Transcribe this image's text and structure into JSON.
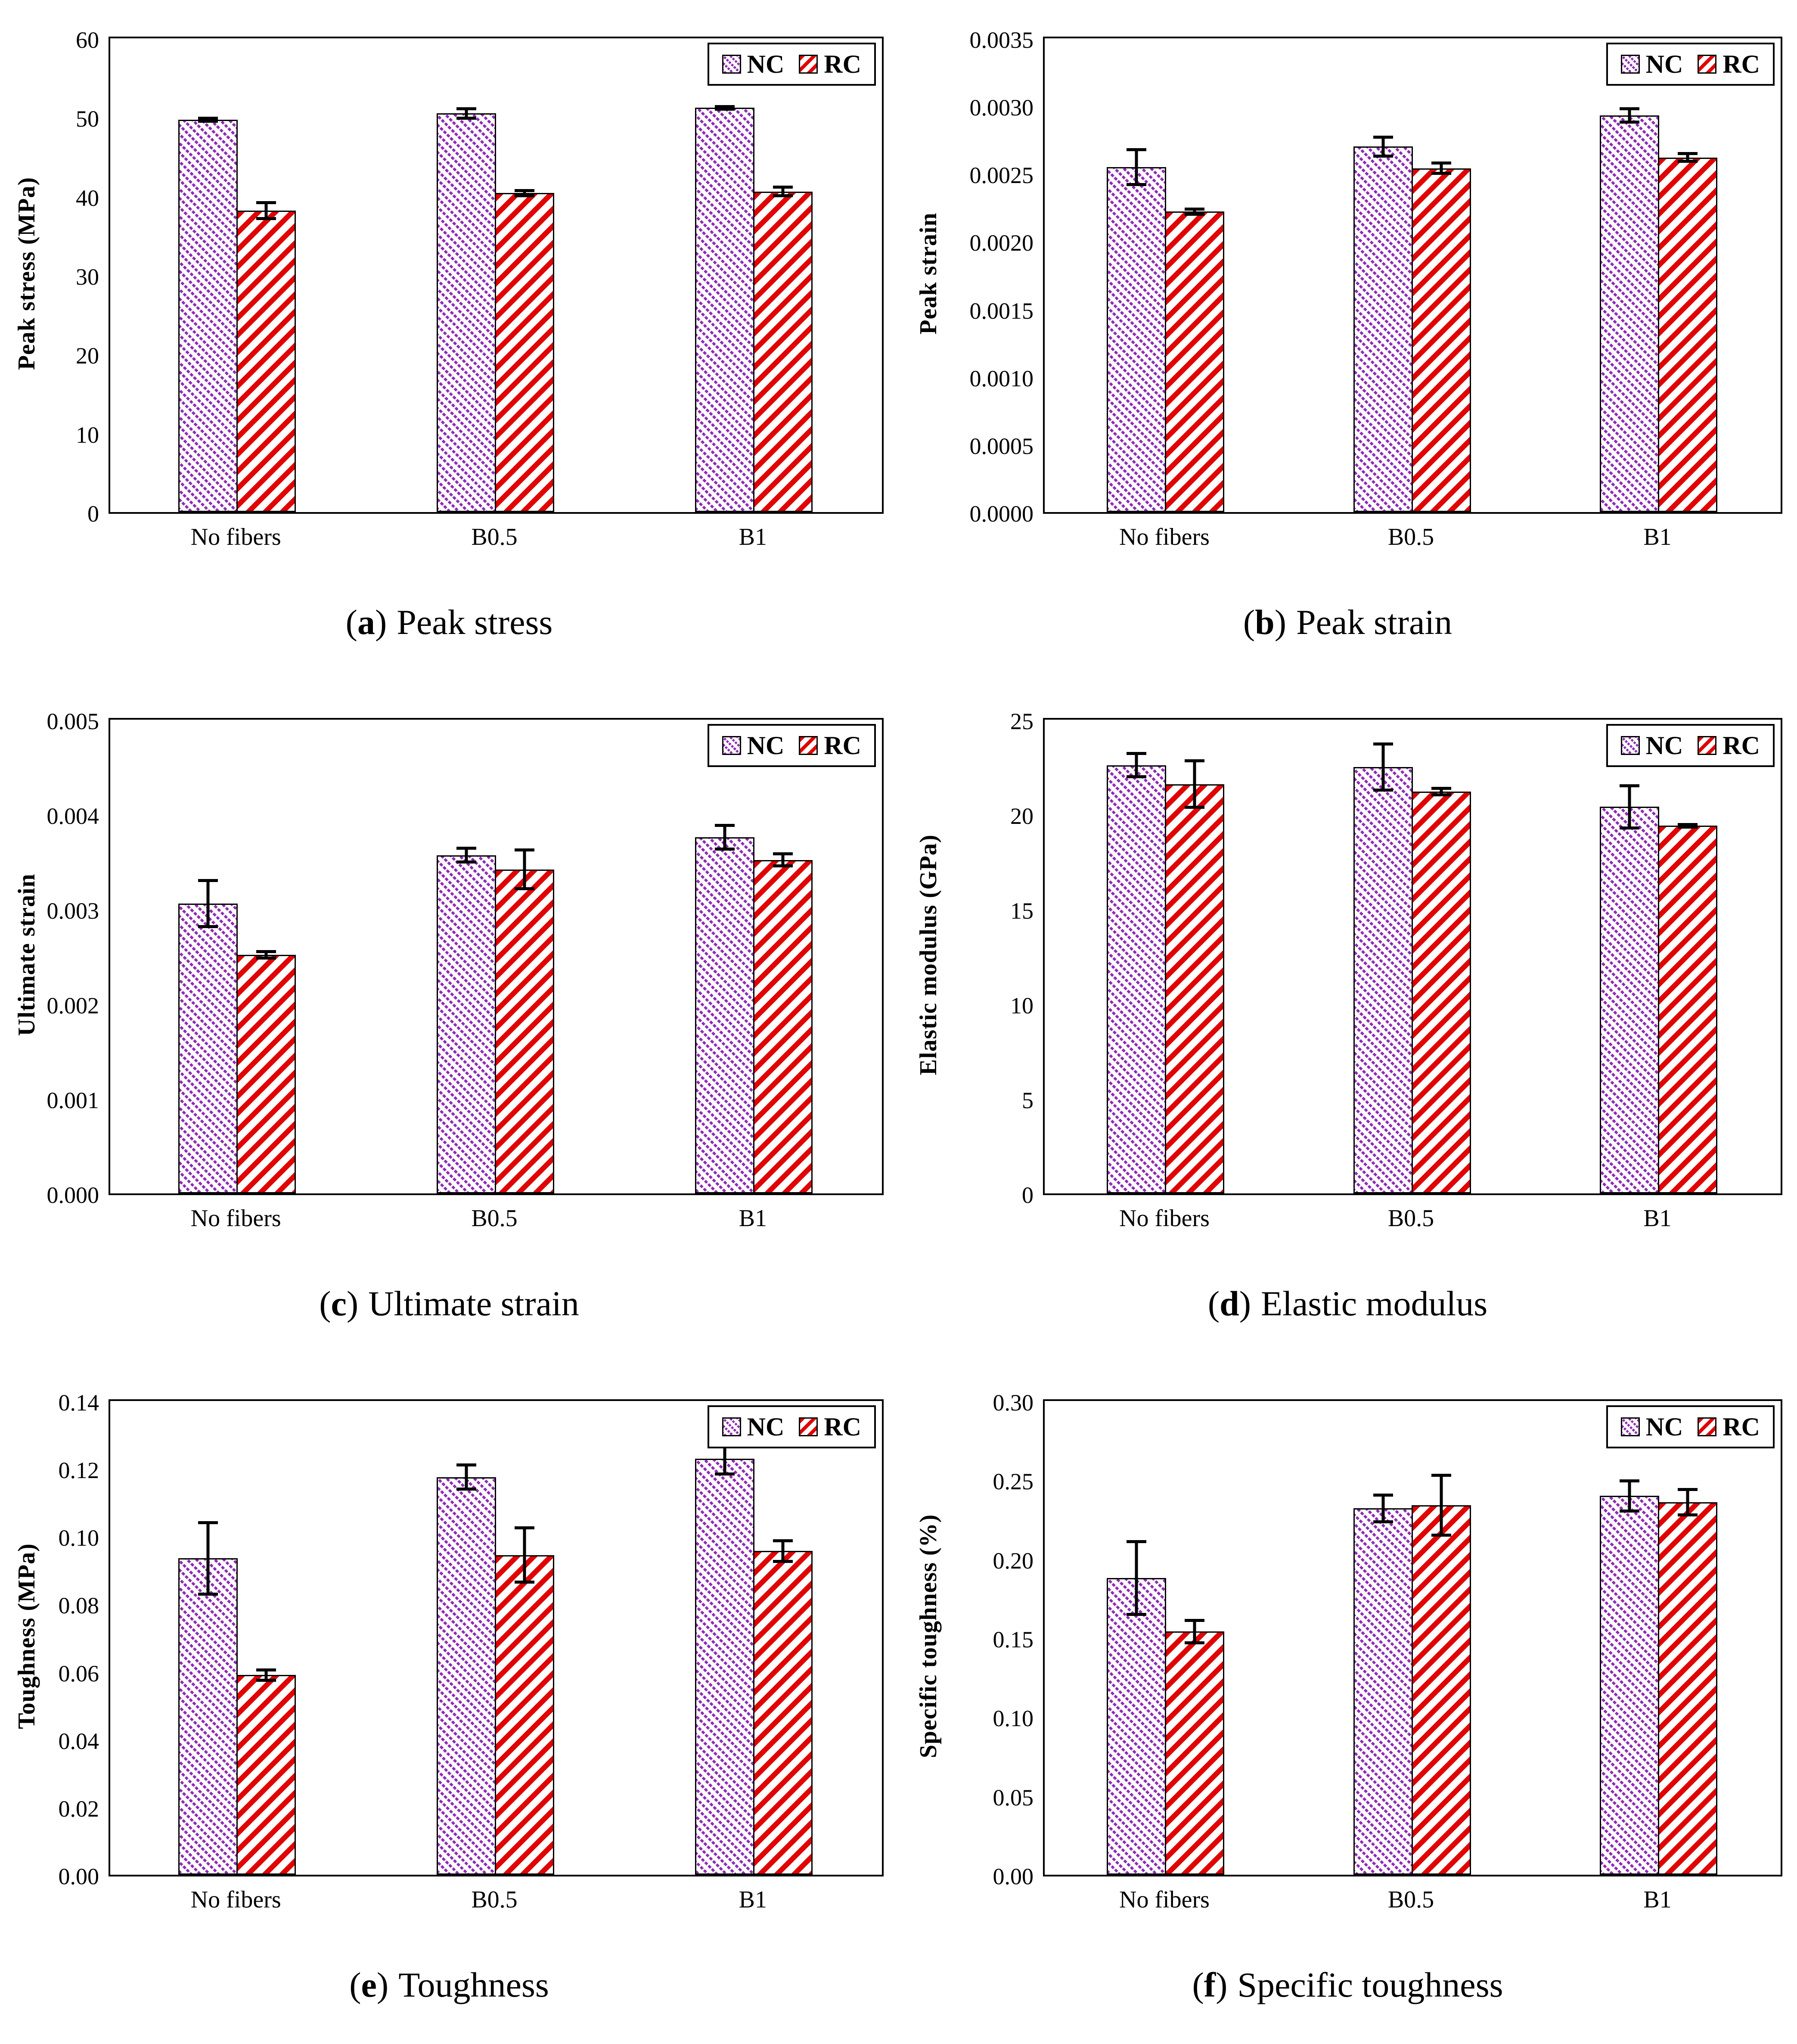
{
  "figure": {
    "legend": {
      "items": [
        {
          "label": "NC",
          "pattern": "purple-dotted-diagonal"
        },
        {
          "label": "RC",
          "pattern": "red-striped-diagonal"
        }
      ]
    },
    "colors": {
      "nc_purple": "#8E2BB3",
      "rc_red": "#E00404",
      "axis": "#000000",
      "background": "#FFFFFF"
    }
  },
  "chart_data": [
    {
      "type": "bar",
      "panel": "a",
      "caption": {
        "open": "(",
        "letter": "a",
        "close": ")",
        "title": "Peak stress"
      },
      "ylabel": "Peak stress (MPa)",
      "xlabel": "",
      "categories": [
        "No fibers",
        "B0.5",
        "B1"
      ],
      "ylim": [
        0,
        60
      ],
      "ytick_step": 10,
      "ytick_decimals": 0,
      "grid": false,
      "legend_position": "top-right",
      "series": [
        {
          "name": "NC",
          "values": [
            49.7,
            50.5,
            51.2
          ],
          "errors": [
            0.4,
            0.8,
            0.35
          ]
        },
        {
          "name": "RC",
          "values": [
            38.2,
            40.4,
            40.6
          ],
          "errors": [
            1.2,
            0.5,
            0.75
          ]
        }
      ]
    },
    {
      "type": "bar",
      "panel": "b",
      "caption": {
        "open": "(",
        "letter": "b",
        "close": ")",
        "title": "Peak strain"
      },
      "ylabel": "Peak strain",
      "xlabel": "",
      "categories": [
        "No fibers",
        "B0.5",
        "B1"
      ],
      "ylim": [
        0,
        0.0035
      ],
      "ytick_step": 0.0005,
      "ytick_decimals": 4,
      "grid": false,
      "legend_position": "top-right",
      "series": [
        {
          "name": "NC",
          "values": [
            0.00255,
            0.0027,
            0.00293
          ],
          "errors": [
            0.00014,
            8e-05,
            6e-05
          ]
        },
        {
          "name": "RC",
          "values": [
            0.00222,
            0.00254,
            0.00262
          ],
          "errors": [
            3e-05,
            5e-05,
            4e-05
          ]
        }
      ]
    },
    {
      "type": "bar",
      "panel": "c",
      "caption": {
        "open": "(",
        "letter": "c",
        "close": ")",
        "title": "Ultimate strain"
      },
      "ylabel": "Ultimate strain",
      "xlabel": "",
      "categories": [
        "No fibers",
        "B0.5",
        "B1"
      ],
      "ylim": [
        0,
        0.005
      ],
      "ytick_step": 0.001,
      "ytick_decimals": 3,
      "grid": false,
      "legend_position": "top-right",
      "series": [
        {
          "name": "NC",
          "values": [
            0.00306,
            0.00357,
            0.00376
          ],
          "errors": [
            0.00026,
            9e-05,
            0.00014
          ]
        },
        {
          "name": "RC",
          "values": [
            0.00252,
            0.00342,
            0.00352
          ],
          "errors": [
            5e-05,
            0.00022,
            8e-05
          ]
        }
      ]
    },
    {
      "type": "bar",
      "panel": "d",
      "caption": {
        "open": "(",
        "letter": "d",
        "close": ")",
        "title": "Elastic modulus"
      },
      "ylabel": "Elastic modulus (GPa)",
      "xlabel": "",
      "categories": [
        "No fibers",
        "B0.5",
        "B1"
      ],
      "ylim": [
        0,
        25
      ],
      "ytick_step": 5,
      "ytick_decimals": 0,
      "grid": false,
      "legend_position": "top-right",
      "series": [
        {
          "name": "NC",
          "values": [
            22.6,
            22.5,
            20.4
          ],
          "errors": [
            0.7,
            1.3,
            1.2
          ]
        },
        {
          "name": "RC",
          "values": [
            21.6,
            21.2,
            19.4
          ],
          "errors": [
            1.3,
            0.25,
            0.15
          ]
        }
      ]
    },
    {
      "type": "bar",
      "panel": "e",
      "caption": {
        "open": "(",
        "letter": "e",
        "close": ")",
        "title": "Toughness"
      },
      "ylabel": "Toughness (MPa)",
      "xlabel": "",
      "categories": [
        "No fibers",
        "B0.5",
        "B1"
      ],
      "ylim": [
        0,
        0.14
      ],
      "ytick_step": 0.02,
      "ytick_decimals": 2,
      "grid": false,
      "legend_position": "top-right",
      "series": [
        {
          "name": "NC",
          "values": [
            0.0935,
            0.1175,
            0.123
          ],
          "errors": [
            0.011,
            0.004,
            0.005
          ]
        },
        {
          "name": "RC",
          "values": [
            0.059,
            0.0945,
            0.0957
          ],
          "errors": [
            0.002,
            0.0085,
            0.0035
          ]
        }
      ]
    },
    {
      "type": "bar",
      "panel": "f",
      "caption": {
        "open": "(",
        "letter": "f",
        "close": ")",
        "title": "Specific toughness"
      },
      "ylabel": "Specific toughness (%)",
      "xlabel": "",
      "categories": [
        "No fibers",
        "B0.5",
        "B1"
      ],
      "ylim": [
        0,
        0.3
      ],
      "ytick_step": 0.05,
      "ytick_decimals": 2,
      "grid": false,
      "legend_position": "top-right",
      "series": [
        {
          "name": "NC",
          "values": [
            0.188,
            0.232,
            0.24
          ],
          "errors": [
            0.024,
            0.0095,
            0.0105
          ]
        },
        {
          "name": "RC",
          "values": [
            0.154,
            0.234,
            0.236
          ],
          "errors": [
            0.008,
            0.02,
            0.009
          ]
        }
      ]
    }
  ]
}
